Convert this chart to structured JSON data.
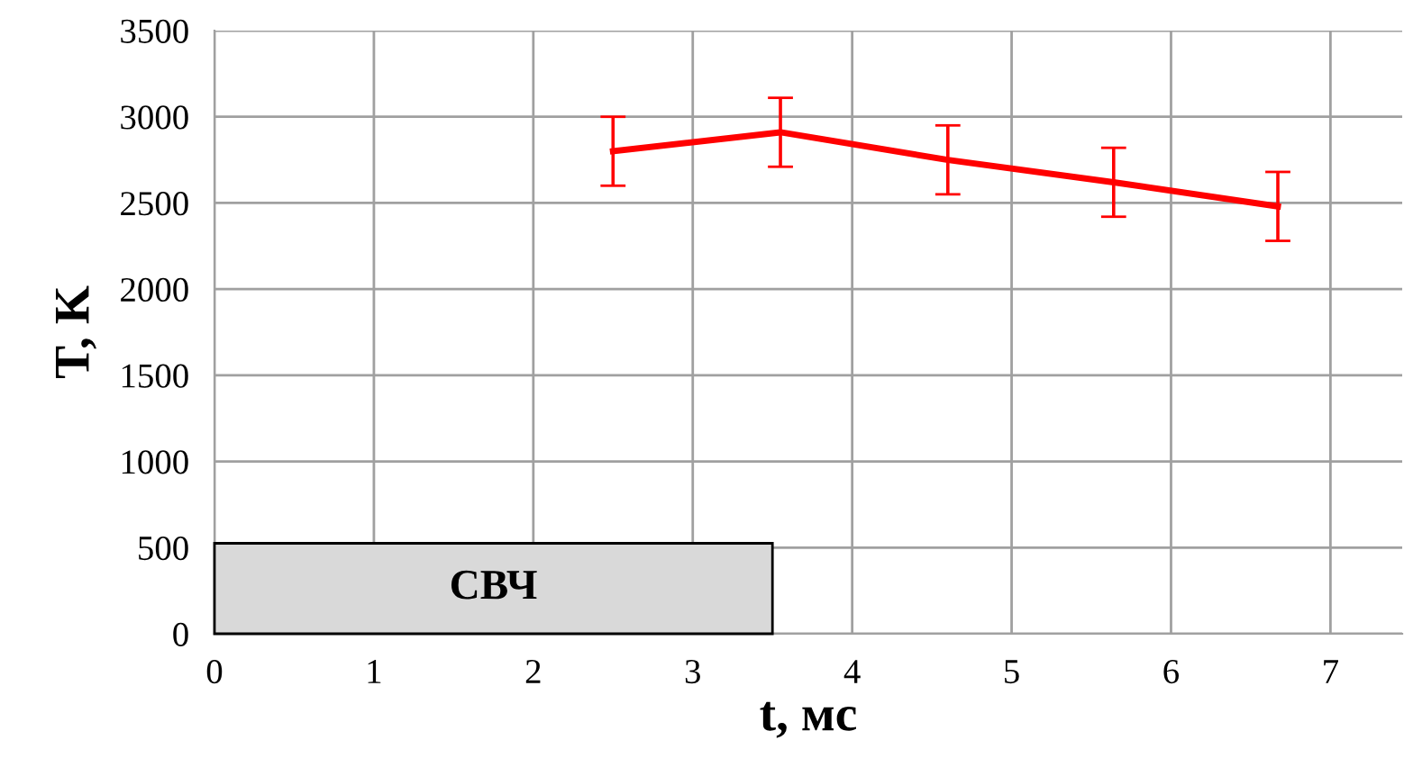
{
  "chart_data": {
    "type": "line",
    "xlabel": "t, мс",
    "ylabel": "T, K",
    "x": [
      2.5,
      3.55,
      4.6,
      5.64,
      6.67
    ],
    "series": [
      {
        "color": "#ff0000",
        "values": [
          2800,
          2910,
          2750,
          2620,
          2480
        ],
        "errors": [
          200,
          200,
          200,
          200,
          200
        ]
      }
    ],
    "xlim": [
      0,
      7.45
    ],
    "xticks": [
      0,
      1,
      2,
      3,
      4,
      5,
      6,
      7
    ],
    "ylim": [
      0,
      3500
    ],
    "yticks": [
      0,
      500,
      1000,
      1500,
      2000,
      2500,
      3000,
      3500
    ],
    "grid": true,
    "marker": "none",
    "line_style": "solid",
    "bands": [
      {
        "axis": "x",
        "from": 0,
        "to": 3.5,
        "label": "СВЧ",
        "color": "#d9d9d9"
      }
    ]
  }
}
